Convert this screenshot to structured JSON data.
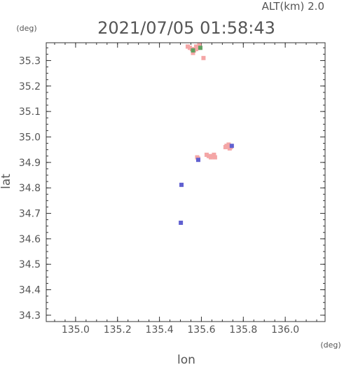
{
  "chart_data": {
    "type": "scatter",
    "title": "2021/07/05 01:58:43",
    "altitude_label": "ALT(km) 2.0",
    "xlabel": "lon",
    "ylabel": "lat",
    "x_unit": "(deg)",
    "y_unit": "(deg)",
    "xlim": [
      134.86,
      136.19
    ],
    "ylim": [
      34.275,
      35.37
    ],
    "x_ticks": [
      "135.0",
      "135.2",
      "135.4",
      "135.6",
      "135.8",
      "136.0"
    ],
    "y_ticks": [
      "34.3",
      "34.4",
      "34.5",
      "34.6",
      "34.7",
      "34.8",
      "34.9",
      "35.0",
      "35.1",
      "35.2",
      "35.3"
    ],
    "grid": false,
    "series": [
      {
        "color": "#f4a6a6",
        "points": [
          [
            135.535,
            35.355
          ],
          [
            135.545,
            35.35
          ],
          [
            135.555,
            35.345
          ],
          [
            135.565,
            35.34
          ],
          [
            135.575,
            35.345
          ],
          [
            135.585,
            35.35
          ],
          [
            135.59,
            35.36
          ],
          [
            135.575,
            35.355
          ],
          [
            135.56,
            35.33
          ],
          [
            135.61,
            35.31
          ],
          [
            135.58,
            34.92
          ],
          [
            135.585,
            34.915
          ],
          [
            135.625,
            34.93
          ],
          [
            135.635,
            34.925
          ],
          [
            135.645,
            34.92
          ],
          [
            135.655,
            34.925
          ],
          [
            135.665,
            34.92
          ],
          [
            135.66,
            34.93
          ],
          [
            135.715,
            34.96
          ],
          [
            135.72,
            34.965
          ],
          [
            135.73,
            34.97
          ],
          [
            135.74,
            34.96
          ],
          [
            135.735,
            34.955
          ]
        ]
      },
      {
        "color": "#6060d0",
        "points": [
          [
            135.505,
            34.812
          ],
          [
            135.502,
            34.663
          ],
          [
            135.745,
            34.965
          ],
          [
            135.585,
            34.91
          ]
        ]
      },
      {
        "color": "#60a060",
        "points": [
          [
            135.56,
            35.34
          ],
          [
            135.595,
            35.35
          ]
        ]
      }
    ]
  }
}
